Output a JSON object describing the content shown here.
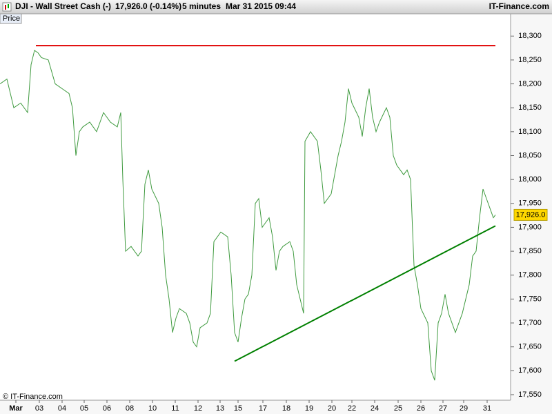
{
  "chart_data": {
    "type": "line",
    "title": "DJI - Wall Street Cash (-)",
    "quote": "17,926.0 (-0.14%)",
    "interval": "5 minutes",
    "datetime": "Mar 31 2015 09:44",
    "brand": "IT-Finance.com",
    "panel_label": "Price",
    "copyright": "© IT-Finance.com",
    "xlim": [
      0,
      148
    ],
    "ylim": [
      17524,
      18335
    ],
    "xticks": [
      {
        "value": 4.6,
        "label": "Mar"
      },
      {
        "value": 11.4,
        "label": "03"
      },
      {
        "value": 18,
        "label": "04"
      },
      {
        "value": 24.4,
        "label": "05"
      },
      {
        "value": 31,
        "label": "06"
      },
      {
        "value": 37.6,
        "label": "08"
      },
      {
        "value": 44.2,
        "label": "10"
      },
      {
        "value": 50.8,
        "label": "11"
      },
      {
        "value": 57.4,
        "label": "12"
      },
      {
        "value": 63.8,
        "label": "13"
      },
      {
        "value": 69,
        "label": "15"
      },
      {
        "value": 76.2,
        "label": "17"
      },
      {
        "value": 83,
        "label": "18"
      },
      {
        "value": 89.6,
        "label": "19"
      },
      {
        "value": 96.2,
        "label": "20"
      },
      {
        "value": 102,
        "label": "22"
      },
      {
        "value": 108.6,
        "label": "24"
      },
      {
        "value": 115.4,
        "label": "25"
      },
      {
        "value": 122,
        "label": "26"
      },
      {
        "value": 128.4,
        "label": "27"
      },
      {
        "value": 134.4,
        "label": "29"
      },
      {
        "value": 141.2,
        "label": "31"
      }
    ],
    "yticks": [
      {
        "value": 17550,
        "label": "17,550"
      },
      {
        "value": 17600,
        "label": "17,600"
      },
      {
        "value": 17650,
        "label": "17,650"
      },
      {
        "value": 17700,
        "label": "17,700"
      },
      {
        "value": 17750,
        "label": "17,750"
      },
      {
        "value": 17800,
        "label": "17,800"
      },
      {
        "value": 17850,
        "label": "17,850"
      },
      {
        "value": 17900,
        "label": "17,900"
      },
      {
        "value": 17950,
        "label": "17,950"
      },
      {
        "value": 18000,
        "label": "18,000"
      },
      {
        "value": 18050,
        "label": "18,050"
      },
      {
        "value": 18100,
        "label": "18,100"
      },
      {
        "value": 18150,
        "label": "18,150"
      },
      {
        "value": 18200,
        "label": "18,200"
      },
      {
        "value": 18250,
        "label": "18,250"
      },
      {
        "value": 18300,
        "label": "18,300"
      }
    ],
    "series": [
      {
        "color": "#3f9a3f",
        "x": [
          0,
          2,
          4,
          6,
          8,
          9,
          10,
          11,
          12,
          14,
          16,
          18,
          20,
          21,
          22,
          23,
          24,
          26,
          28,
          30,
          32,
          34,
          35,
          35.6,
          36.4,
          38,
          40,
          41,
          42,
          43,
          44,
          46,
          47,
          48,
          49,
          50,
          51,
          52,
          54,
          55,
          56,
          57,
          58,
          60,
          61,
          62,
          64,
          66,
          67,
          68,
          69,
          70,
          71,
          72,
          73,
          74,
          75,
          76,
          78,
          79,
          80,
          81,
          82,
          84,
          85,
          86,
          87,
          88,
          88.4,
          90,
          92,
          93,
          94,
          96,
          98,
          99,
          100,
          101,
          102,
          104,
          105,
          106,
          107,
          108,
          109,
          110,
          112,
          113,
          114,
          115,
          117,
          118,
          119,
          120,
          121,
          122,
          124,
          125,
          126,
          127,
          128,
          129,
          130,
          132,
          133,
          134,
          135,
          136,
          137,
          138,
          139,
          140,
          141,
          142,
          143,
          143.6
        ],
        "values": [
          18200,
          18210,
          18150,
          18160,
          18140,
          18240,
          18270,
          18265,
          18255,
          18250,
          18200,
          18190,
          18180,
          18150,
          18050,
          18100,
          18110,
          18120,
          18100,
          18140,
          18120,
          18110,
          18140,
          18000,
          17850,
          17860,
          17840,
          17850,
          17990,
          18020,
          17980,
          17950,
          17900,
          17800,
          17750,
          17680,
          17710,
          17730,
          17720,
          17700,
          17660,
          17650,
          17690,
          17700,
          17720,
          17870,
          17890,
          17880,
          17800,
          17680,
          17660,
          17710,
          17750,
          17760,
          17800,
          17950,
          17960,
          17900,
          17920,
          17880,
          17810,
          17850,
          17860,
          17870,
          17850,
          17780,
          17750,
          17720,
          18080,
          18100,
          18080,
          18020,
          17950,
          17970,
          18050,
          18080,
          18120,
          18190,
          18160,
          18130,
          18090,
          18150,
          18190,
          18130,
          18100,
          18120,
          18150,
          18130,
          18050,
          18030,
          18010,
          18020,
          18000,
          17820,
          17780,
          17730,
          17700,
          17600,
          17580,
          17700,
          17720,
          17760,
          17720,
          17680,
          17700,
          17720,
          17750,
          17780,
          17840,
          17850,
          17920,
          17980,
          17960,
          17940,
          17920,
          17926
        ]
      }
    ],
    "lines": [
      {
        "color": "#e00000",
        "x": [
          10.4,
          143.6
        ],
        "y": [
          18280,
          18280
        ]
      },
      {
        "color": "#008000",
        "x": [
          68,
          143.6
        ],
        "y": [
          17620,
          17903
        ]
      }
    ],
    "last": {
      "value": 17926,
      "label": "17,926.0"
    }
  }
}
